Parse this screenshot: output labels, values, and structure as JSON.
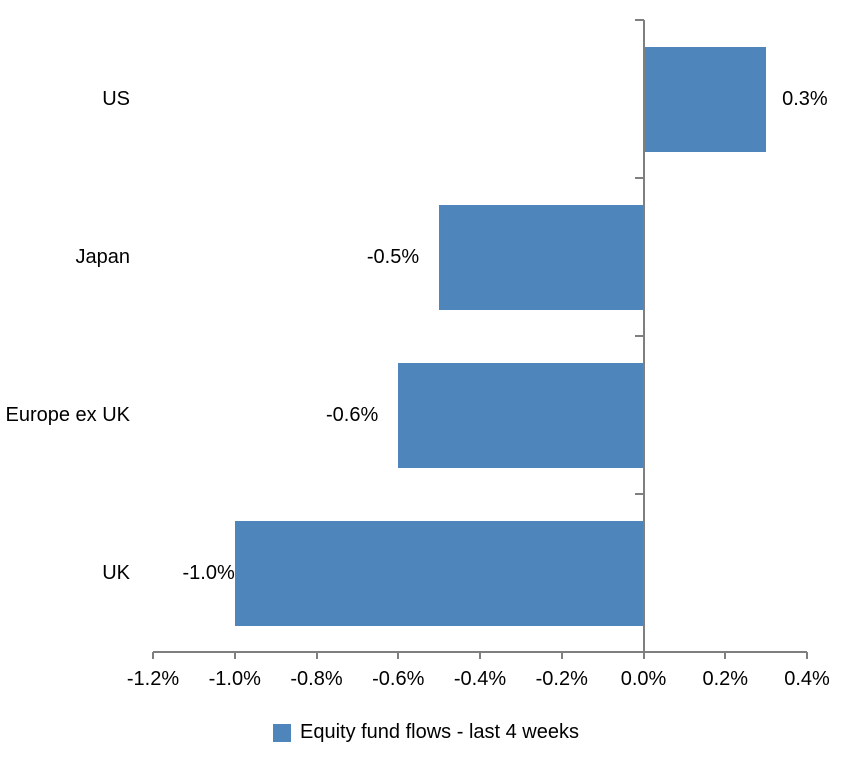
{
  "chart_data": {
    "type": "bar",
    "orientation": "horizontal",
    "title": "",
    "xlabel": "",
    "ylabel": "",
    "categories": [
      "US",
      "Japan",
      "Europe ex UK",
      "UK"
    ],
    "values": [
      0.3,
      -0.5,
      -0.6,
      -1.0
    ],
    "data_labels": [
      "0.3%",
      "-0.5%",
      "-0.6%",
      "-1.0%"
    ],
    "series_name": "Equity fund flows - last 4 weeks",
    "value_unit": "%",
    "xlim": [
      -1.2,
      0.4
    ],
    "x_ticks": [
      -1.2,
      -1.0,
      -0.8,
      -0.6,
      -0.4,
      -0.2,
      0.0,
      0.2,
      0.4
    ],
    "x_tick_labels": [
      "-1.2%",
      "-1.0%",
      "-0.8%",
      "-0.6%",
      "-0.4%",
      "-0.2%",
      "0.0%",
      "0.2%",
      "0.4%"
    ],
    "grid": false,
    "legend_position": "bottom",
    "colors": {
      "bar": "#4E86BC",
      "axis": "#7F7F7F",
      "text": "#000000",
      "background": "#FFFFFF"
    }
  }
}
